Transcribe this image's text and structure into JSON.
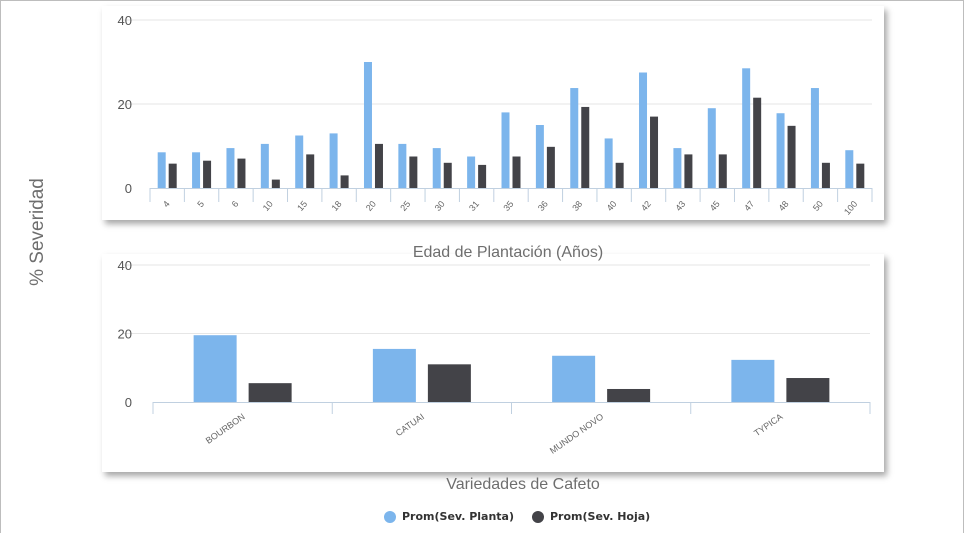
{
  "y_title": "% Severidad",
  "colors": {
    "planta": "#7cb5ec",
    "hoja": "#434348"
  },
  "legend": [
    "Prom(Sev. Planta)",
    "Prom(Sev. Hoja)"
  ],
  "chart_data": [
    {
      "type": "bar",
      "xlabel": "Edad de Plantación (Años)",
      "ylabel": "% Severidad",
      "ylim": [
        0,
        40
      ],
      "yticks": [
        "0",
        "20",
        "40"
      ],
      "categories": [
        "4",
        "5",
        "6",
        "10",
        "15",
        "18",
        "20",
        "25",
        "30",
        "31",
        "35",
        "36",
        "38",
        "40",
        "42",
        "43",
        "45",
        "47",
        "48",
        "50",
        "100"
      ],
      "series": [
        {
          "name": "Prom(Sev. Planta)",
          "values": [
            8.5,
            8.5,
            9.5,
            10.5,
            12.5,
            13,
            30,
            10.5,
            9.5,
            7.5,
            18,
            15,
            23.8,
            11.8,
            27.5,
            9.5,
            19,
            28.5,
            17.8,
            23.8,
            9
          ]
        },
        {
          "name": "Prom(Sev. Hoja)",
          "values": [
            5.8,
            6.5,
            7,
            2,
            8,
            3,
            10.5,
            7.5,
            6,
            5.5,
            7.5,
            9.8,
            19.3,
            6,
            17,
            8,
            8,
            21.5,
            14.8,
            6,
            5.8
          ]
        }
      ],
      "grid": true
    },
    {
      "type": "bar",
      "xlabel": "Variedades de Cafeto",
      "ylabel": "% Severidad",
      "ylim": [
        0,
        40
      ],
      "yticks": [
        "0",
        "20",
        "40"
      ],
      "categories": [
        "BOURBON",
        "CATUAI",
        "MUNDO NOVO",
        "TYPICA"
      ],
      "series": [
        {
          "name": "Prom(Sev. Planta)",
          "values": [
            19.5,
            15.5,
            13.5,
            12.3
          ]
        },
        {
          "name": "Prom(Sev. Hoja)",
          "values": [
            5.5,
            11,
            3.8,
            7
          ]
        }
      ],
      "grid": true
    }
  ]
}
